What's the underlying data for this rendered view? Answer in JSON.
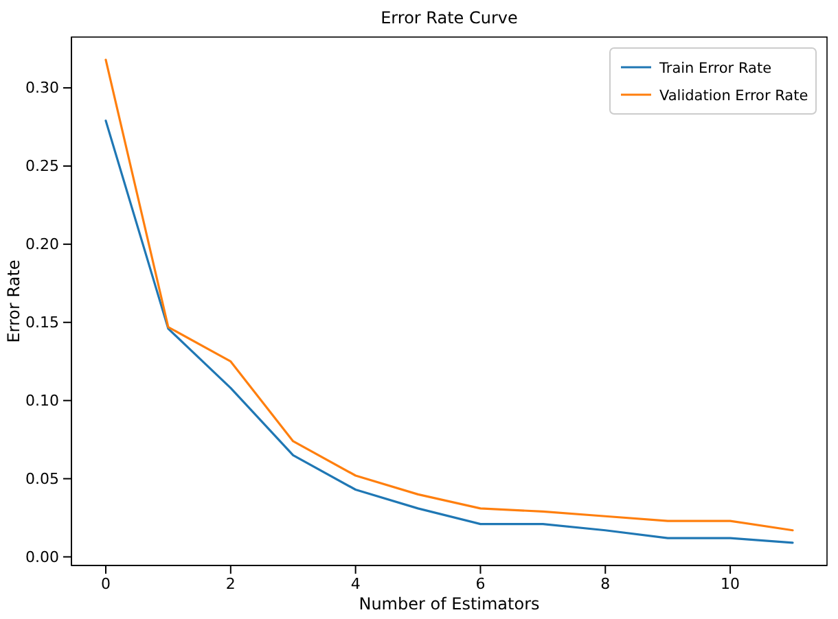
{
  "chart_data": {
    "type": "line",
    "title": "Error Rate Curve",
    "xlabel": "Number of Estimators",
    "ylabel": "Error Rate",
    "x": [
      0,
      1,
      2,
      3,
      4,
      5,
      6,
      7,
      8,
      9,
      10,
      11
    ],
    "series": [
      {
        "name": "Train Error Rate",
        "color": "#1f77b4",
        "values": [
          0.279,
          0.146,
          0.108,
          0.065,
          0.043,
          0.031,
          0.021,
          0.021,
          0.017,
          0.012,
          0.012,
          0.009
        ]
      },
      {
        "name": "Validation Error Rate",
        "color": "#ff7f0e",
        "values": [
          0.318,
          0.147,
          0.125,
          0.074,
          0.052,
          0.04,
          0.031,
          0.029,
          0.026,
          0.023,
          0.023,
          0.017
        ]
      }
    ],
    "xlim": [
      -0.55,
      11.55
    ],
    "xticks": [
      0,
      2,
      4,
      6,
      8,
      10
    ],
    "ylim": [
      -0.0055,
      0.3325
    ],
    "yticks": [
      {
        "value": 0,
        "label": "0.00"
      },
      {
        "value": 0.05,
        "label": "0.05"
      },
      {
        "value": 0.1,
        "label": "0.10"
      },
      {
        "value": 0.15,
        "label": "0.15"
      },
      {
        "value": 0.2,
        "label": "0.20"
      },
      {
        "value": 0.25,
        "label": "0.25"
      },
      {
        "value": 0.3,
        "label": "0.30"
      }
    ],
    "legend": "top right",
    "grid": false,
    "marker": "none",
    "line_style": "solid"
  }
}
